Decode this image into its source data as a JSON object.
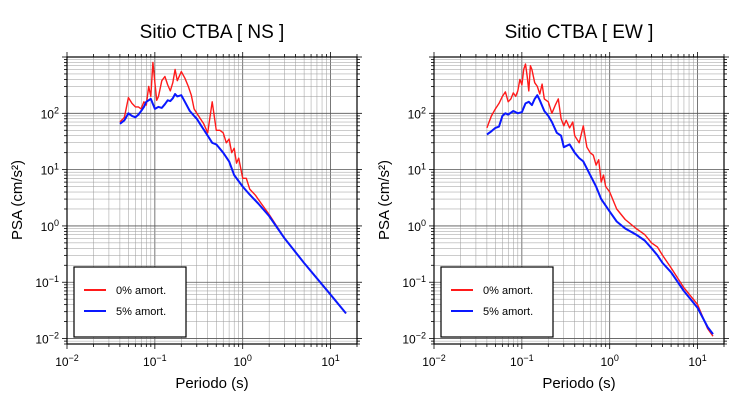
{
  "chart_data": [
    {
      "type": "line",
      "title": "Sitio CTBA [ NS ]",
      "xlabel": "Periodo (s)",
      "ylabel": "PSA (cm/s²)",
      "xscale": "log",
      "yscale": "log",
      "xlim": [
        0.01,
        20
      ],
      "ylim": [
        0.008,
        1000
      ],
      "x_ticks": [
        {
          "value": 0.01,
          "base": "10",
          "exp": "−2"
        },
        {
          "value": 0.1,
          "base": "10",
          "exp": "−1"
        },
        {
          "value": 1,
          "base": "10",
          "exp": "0"
        },
        {
          "value": 10,
          "base": "10",
          "exp": "1"
        }
      ],
      "y_ticks": [
        {
          "value": 0.01,
          "base": "10",
          "exp": "−2"
        },
        {
          "value": 0.1,
          "base": "10",
          "exp": "−1"
        },
        {
          "value": 1,
          "base": "10",
          "exp": "0"
        },
        {
          "value": 10,
          "base": "10",
          "exp": "1"
        },
        {
          "value": 100,
          "base": "10",
          "exp": "2"
        }
      ],
      "grid": true,
      "legend_position": "bottom-left",
      "series": [
        {
          "name": "0% amort.",
          "color": "#ff1a1a",
          "x": [
            0.04,
            0.045,
            0.05,
            0.055,
            0.06,
            0.065,
            0.07,
            0.075,
            0.08,
            0.085,
            0.09,
            0.095,
            0.1,
            0.105,
            0.11,
            0.12,
            0.13,
            0.14,
            0.15,
            0.16,
            0.17,
            0.18,
            0.2,
            0.22,
            0.24,
            0.26,
            0.28,
            0.3,
            0.33,
            0.36,
            0.4,
            0.45,
            0.5,
            0.55,
            0.6,
            0.65,
            0.7,
            0.75,
            0.8,
            0.85,
            0.9,
            1.0,
            1.1,
            1.2,
            1.4,
            1.6,
            2.0,
            3.0,
            5.0,
            10.0,
            15.0
          ],
          "y": [
            70,
            85,
            190,
            150,
            130,
            130,
            120,
            160,
            140,
            300,
            200,
            800,
            350,
            170,
            200,
            380,
            450,
            320,
            250,
            350,
            600,
            380,
            550,
            420,
            300,
            210,
            120,
            100,
            80,
            65,
            45,
            160,
            50,
            50,
            45,
            30,
            35,
            20,
            24,
            13,
            16,
            7,
            7,
            4.5,
            3.5,
            2.6,
            1.6,
            0.6,
            0.22,
            0.06,
            0.028
          ]
        },
        {
          "name": "5% amort.",
          "color": "#0a18ff",
          "x": [
            0.04,
            0.045,
            0.05,
            0.055,
            0.06,
            0.065,
            0.07,
            0.075,
            0.08,
            0.09,
            0.1,
            0.11,
            0.12,
            0.13,
            0.14,
            0.15,
            0.16,
            0.17,
            0.18,
            0.2,
            0.22,
            0.25,
            0.28,
            0.3,
            0.35,
            0.4,
            0.45,
            0.5,
            0.6,
            0.7,
            0.8,
            1.0,
            1.2,
            1.5,
            2.0,
            3.0,
            5.0,
            10.0,
            15.0
          ],
          "y": [
            65,
            75,
            100,
            90,
            85,
            95,
            110,
            130,
            160,
            180,
            120,
            130,
            125,
            145,
            170,
            165,
            185,
            220,
            200,
            210,
            160,
            110,
            90,
            80,
            55,
            40,
            30,
            28,
            20,
            14,
            8,
            5,
            3.6,
            2.5,
            1.5,
            0.6,
            0.22,
            0.06,
            0.028
          ]
        }
      ]
    },
    {
      "type": "line",
      "title": "Sitio CTBA [ EW ]",
      "xlabel": "Periodo (s)",
      "ylabel": "PSA (cm/s²)",
      "xscale": "log",
      "yscale": "log",
      "xlim": [
        0.01,
        20
      ],
      "ylim": [
        0.008,
        1000
      ],
      "x_ticks": [
        {
          "value": 0.01,
          "base": "10",
          "exp": "−2"
        },
        {
          "value": 0.1,
          "base": "10",
          "exp": "−1"
        },
        {
          "value": 1,
          "base": "10",
          "exp": "0"
        },
        {
          "value": 10,
          "base": "10",
          "exp": "1"
        }
      ],
      "y_ticks": [
        {
          "value": 0.01,
          "base": "10",
          "exp": "−2"
        },
        {
          "value": 0.1,
          "base": "10",
          "exp": "−1"
        },
        {
          "value": 1,
          "base": "10",
          "exp": "0"
        },
        {
          "value": 10,
          "base": "10",
          "exp": "1"
        },
        {
          "value": 100,
          "base": "10",
          "exp": "2"
        }
      ],
      "grid": true,
      "legend_position": "bottom-left",
      "series": [
        {
          "name": "0% amort.",
          "color": "#ff1a1a",
          "x": [
            0.04,
            0.045,
            0.05,
            0.055,
            0.06,
            0.065,
            0.07,
            0.075,
            0.08,
            0.085,
            0.09,
            0.095,
            0.1,
            0.105,
            0.11,
            0.115,
            0.12,
            0.125,
            0.13,
            0.14,
            0.15,
            0.16,
            0.17,
            0.18,
            0.2,
            0.22,
            0.24,
            0.26,
            0.28,
            0.3,
            0.32,
            0.35,
            0.38,
            0.4,
            0.45,
            0.5,
            0.55,
            0.6,
            0.65,
            0.7,
            0.75,
            0.8,
            0.85,
            0.9,
            1.0,
            1.2,
            1.5,
            2.0,
            2.5,
            3.0,
            3.5,
            4.0,
            5.0,
            7.0,
            10.0,
            13.0,
            15.0
          ],
          "y": [
            55,
            90,
            120,
            150,
            200,
            240,
            160,
            180,
            230,
            200,
            250,
            400,
            320,
            600,
            750,
            450,
            250,
            700,
            600,
            350,
            300,
            220,
            330,
            180,
            160,
            100,
            140,
            180,
            80,
            60,
            75,
            55,
            70,
            40,
            30,
            60,
            25,
            20,
            18,
            12,
            15,
            6,
            8,
            5,
            4,
            2,
            1.3,
            0.9,
            0.7,
            0.5,
            0.42,
            0.3,
            0.18,
            0.08,
            0.04,
            0.015,
            0.011
          ]
        },
        {
          "name": "5% amort.",
          "color": "#0a18ff",
          "x": [
            0.04,
            0.045,
            0.05,
            0.055,
            0.06,
            0.065,
            0.07,
            0.08,
            0.09,
            0.1,
            0.11,
            0.12,
            0.13,
            0.14,
            0.15,
            0.16,
            0.18,
            0.2,
            0.22,
            0.25,
            0.28,
            0.3,
            0.35,
            0.4,
            0.45,
            0.5,
            0.6,
            0.7,
            0.8,
            1.0,
            1.2,
            1.5,
            2.0,
            2.5,
            3.0,
            3.5,
            4.0,
            5.0,
            7.0,
            10.0,
            13.0,
            15.0
          ],
          "y": [
            42,
            48,
            55,
            58,
            90,
            100,
            95,
            110,
            100,
            105,
            150,
            160,
            140,
            180,
            210,
            170,
            110,
            90,
            70,
            45,
            40,
            25,
            28,
            20,
            16,
            14,
            8,
            5,
            3,
            1.8,
            1.2,
            0.9,
            0.7,
            0.55,
            0.4,
            0.3,
            0.22,
            0.15,
            0.07,
            0.035,
            0.016,
            0.012
          ]
        }
      ]
    }
  ]
}
